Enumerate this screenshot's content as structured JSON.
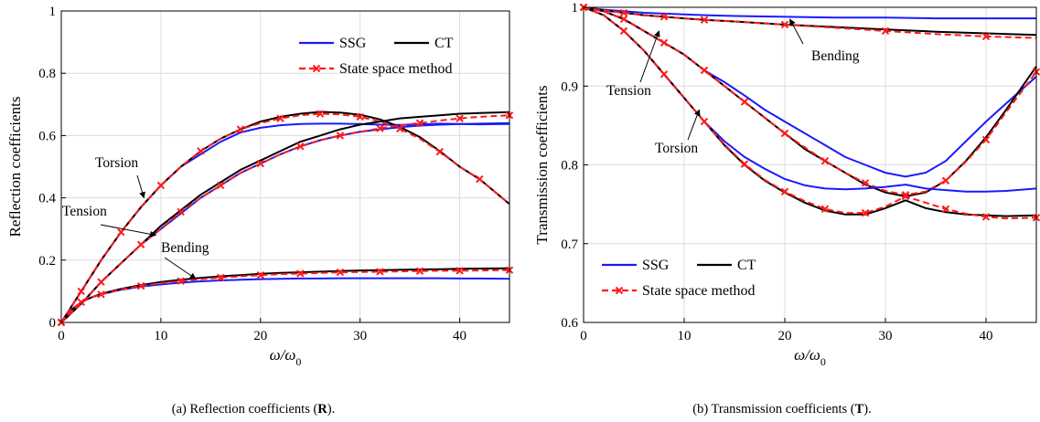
{
  "chart_data": [
    {
      "type": "line",
      "xlabel": "ω/ω",
      "xlabel_sub": "0",
      "ylabel": "Reflection coefficients",
      "xlim": [
        0,
        45
      ],
      "ylim": [
        0,
        1
      ],
      "xticks": [
        0,
        10,
        20,
        30,
        40
      ],
      "yticks": [
        0,
        0.2,
        0.4,
        0.6,
        0.8,
        1
      ],
      "ytick_labels": [
        "0",
        "0.2",
        "0.4",
        "0.6",
        "0.8",
        "1"
      ],
      "grid": true,
      "legend": {
        "placement": "top-right",
        "entries": [
          {
            "label": "SSG",
            "color": "#1a1aff",
            "style": "solid"
          },
          {
            "label": "CT",
            "color": "#000000",
            "style": "solid"
          },
          {
            "label": "State space method",
            "color": "#ff1a1a",
            "style": "dashed-x"
          }
        ]
      },
      "annotations": [
        {
          "text": "Torsion",
          "target_x": 8.3,
          "target_y": 0.4
        },
        {
          "text": "Tension",
          "target_x": 9.5,
          "target_y": 0.28
        },
        {
          "text": "Bending",
          "target_x": 13.5,
          "target_y": 0.14
        }
      ],
      "series": [
        {
          "name": "SSG",
          "group": "Torsion",
          "x": [
            0,
            1,
            2,
            4,
            6,
            8,
            10,
            12,
            14,
            16,
            18,
            20,
            22,
            24,
            26,
            28,
            30,
            32,
            34,
            36,
            38,
            40,
            42,
            45
          ],
          "y": [
            0,
            0.05,
            0.1,
            0.2,
            0.29,
            0.37,
            0.44,
            0.5,
            0.54,
            0.58,
            0.61,
            0.625,
            0.633,
            0.637,
            0.638,
            0.638,
            0.637,
            0.635,
            0.634,
            0.636,
            0.638,
            0.637,
            0.636,
            0.637
          ]
        },
        {
          "name": "CT",
          "group": "Torsion",
          "x": [
            0,
            1,
            2,
            4,
            6,
            8,
            10,
            12,
            14,
            16,
            18,
            20,
            22,
            24,
            26,
            28,
            30,
            32,
            34,
            36,
            38,
            40,
            42,
            45
          ],
          "y": [
            0,
            0.05,
            0.1,
            0.2,
            0.29,
            0.37,
            0.44,
            0.5,
            0.55,
            0.59,
            0.62,
            0.645,
            0.66,
            0.67,
            0.676,
            0.674,
            0.667,
            0.652,
            0.628,
            0.595,
            0.55,
            0.5,
            0.46,
            0.38
          ]
        },
        {
          "name": "State space method",
          "group": "Torsion",
          "x": [
            0,
            1,
            2,
            4,
            6,
            8,
            10,
            12,
            14,
            16,
            18,
            20,
            22,
            24,
            26,
            28,
            30,
            32,
            34,
            36,
            38,
            40,
            42,
            45
          ],
          "y": [
            0,
            0.05,
            0.1,
            0.2,
            0.29,
            0.37,
            0.44,
            0.5,
            0.55,
            0.59,
            0.62,
            0.64,
            0.655,
            0.665,
            0.67,
            0.668,
            0.66,
            0.645,
            0.622,
            0.59,
            0.548,
            0.5,
            0.46,
            0.38
          ]
        },
        {
          "name": "SSG",
          "group": "Tension",
          "x": [
            0,
            2,
            4,
            6,
            8,
            10,
            12,
            14,
            16,
            18,
            20,
            22,
            24,
            26,
            28,
            30,
            32,
            34,
            36,
            38,
            40,
            42,
            45
          ],
          "y": [
            0,
            0.06,
            0.13,
            0.19,
            0.25,
            0.3,
            0.35,
            0.4,
            0.44,
            0.48,
            0.51,
            0.54,
            0.565,
            0.585,
            0.6,
            0.612,
            0.62,
            0.627,
            0.632,
            0.635,
            0.637,
            0.638,
            0.64
          ]
        },
        {
          "name": "CT",
          "group": "Tension",
          "x": [
            0,
            2,
            4,
            6,
            8,
            10,
            12,
            14,
            16,
            18,
            20,
            22,
            24,
            26,
            28,
            30,
            32,
            34,
            36,
            38,
            40,
            42,
            45
          ],
          "y": [
            0,
            0.06,
            0.13,
            0.19,
            0.25,
            0.31,
            0.36,
            0.41,
            0.45,
            0.49,
            0.52,
            0.55,
            0.58,
            0.6,
            0.62,
            0.635,
            0.645,
            0.655,
            0.66,
            0.665,
            0.67,
            0.672,
            0.675
          ]
        },
        {
          "name": "State space method",
          "group": "Tension",
          "x": [
            0,
            2,
            4,
            6,
            8,
            10,
            12,
            14,
            16,
            18,
            20,
            22,
            24,
            26,
            28,
            30,
            32,
            34,
            36,
            38,
            40,
            42,
            45
          ],
          "y": [
            0,
            0.06,
            0.13,
            0.19,
            0.25,
            0.3,
            0.355,
            0.4,
            0.44,
            0.48,
            0.51,
            0.54,
            0.565,
            0.585,
            0.6,
            0.612,
            0.623,
            0.633,
            0.64,
            0.648,
            0.655,
            0.66,
            0.665
          ]
        },
        {
          "name": "SSG",
          "group": "Bending",
          "x": [
            0,
            1,
            2,
            3,
            4,
            6,
            8,
            10,
            12,
            14,
            16,
            18,
            20,
            22,
            24,
            26,
            28,
            30,
            32,
            34,
            36,
            38,
            40,
            42,
            45
          ],
          "y": [
            0,
            0.04,
            0.065,
            0.08,
            0.09,
            0.105,
            0.115,
            0.122,
            0.128,
            0.132,
            0.135,
            0.137,
            0.139,
            0.14,
            0.141,
            0.141,
            0.142,
            0.142,
            0.142,
            0.142,
            0.142,
            0.142,
            0.141,
            0.141,
            0.14
          ]
        },
        {
          "name": "CT",
          "group": "Bending",
          "x": [
            0,
            1,
            2,
            3,
            4,
            6,
            8,
            10,
            12,
            14,
            16,
            18,
            20,
            22,
            24,
            26,
            28,
            30,
            32,
            34,
            36,
            38,
            40,
            42,
            45
          ],
          "y": [
            0,
            0.04,
            0.065,
            0.08,
            0.092,
            0.108,
            0.12,
            0.13,
            0.137,
            0.143,
            0.148,
            0.152,
            0.156,
            0.159,
            0.161,
            0.163,
            0.165,
            0.167,
            0.168,
            0.169,
            0.17,
            0.171,
            0.172,
            0.173,
            0.174
          ]
        },
        {
          "name": "State space method",
          "group": "Bending",
          "x": [
            0,
            1,
            2,
            3,
            4,
            6,
            8,
            10,
            12,
            14,
            16,
            18,
            20,
            22,
            24,
            26,
            28,
            30,
            32,
            34,
            36,
            38,
            40,
            42,
            45
          ],
          "y": [
            0,
            0.04,
            0.065,
            0.08,
            0.09,
            0.106,
            0.117,
            0.126,
            0.133,
            0.139,
            0.144,
            0.148,
            0.152,
            0.155,
            0.157,
            0.159,
            0.161,
            0.162,
            0.163,
            0.164,
            0.165,
            0.166,
            0.166,
            0.167,
            0.168
          ]
        }
      ]
    },
    {
      "type": "line",
      "xlabel": "ω/ω",
      "xlabel_sub": "0",
      "ylabel": "Transmission coefficients",
      "xlim": [
        0,
        45
      ],
      "ylim": [
        0.6,
        1
      ],
      "xticks": [
        0,
        10,
        20,
        30,
        40
      ],
      "yticks": [
        0.6,
        0.7,
        0.8,
        0.9,
        1
      ],
      "ytick_labels": [
        "0.6",
        "0.7",
        "0.8",
        "0.9",
        "1"
      ],
      "grid": true,
      "legend": {
        "placement": "bottom-left",
        "entries": [
          {
            "label": "SSG",
            "color": "#1a1aff",
            "style": "solid"
          },
          {
            "label": "CT",
            "color": "#000000",
            "style": "solid"
          },
          {
            "label": "State space method",
            "color": "#ff1a1a",
            "style": "dashed-x"
          }
        ]
      },
      "annotations": [
        {
          "text": "Bending",
          "target_x": 20.5,
          "target_y": 0.985
        },
        {
          "text": "Tension",
          "target_x": 7.5,
          "target_y": 0.97
        },
        {
          "text": "Torsion",
          "target_x": 11.5,
          "target_y": 0.87
        }
      ],
      "series": [
        {
          "name": "SSG",
          "group": "Bending",
          "x": [
            0,
            2,
            4,
            6,
            8,
            10,
            12,
            15,
            20,
            25,
            30,
            35,
            40,
            45
          ],
          "y": [
            1,
            0.997,
            0.995,
            0.993,
            0.992,
            0.991,
            0.99,
            0.989,
            0.988,
            0.987,
            0.987,
            0.986,
            0.986,
            0.986
          ]
        },
        {
          "name": "CT",
          "group": "Bending",
          "x": [
            0,
            2,
            4,
            6,
            8,
            10,
            12,
            15,
            20,
            25,
            30,
            35,
            40,
            45
          ],
          "y": [
            1,
            0.996,
            0.993,
            0.99,
            0.988,
            0.986,
            0.984,
            0.982,
            0.978,
            0.975,
            0.972,
            0.969,
            0.967,
            0.965
          ]
        },
        {
          "name": "State space method",
          "group": "Bending",
          "x": [
            0,
            2,
            4,
            6,
            8,
            10,
            12,
            15,
            20,
            25,
            30,
            35,
            40,
            45
          ],
          "y": [
            1,
            0.996,
            0.993,
            0.99,
            0.988,
            0.986,
            0.984,
            0.982,
            0.978,
            0.974,
            0.97,
            0.966,
            0.963,
            0.961
          ]
        },
        {
          "name": "SSG",
          "group": "Tension",
          "x": [
            0,
            2,
            4,
            6,
            8,
            10,
            12,
            14,
            16,
            18,
            20,
            22,
            24,
            26,
            28,
            30,
            32,
            34,
            36,
            38,
            40,
            42,
            45
          ],
          "y": [
            1,
            0.995,
            0.985,
            0.97,
            0.955,
            0.94,
            0.92,
            0.905,
            0.888,
            0.87,
            0.855,
            0.84,
            0.825,
            0.81,
            0.8,
            0.79,
            0.785,
            0.79,
            0.805,
            0.83,
            0.855,
            0.878,
            0.912
          ]
        },
        {
          "name": "CT",
          "group": "Tension",
          "x": [
            0,
            2,
            4,
            6,
            8,
            10,
            12,
            14,
            16,
            18,
            20,
            22,
            24,
            26,
            28,
            30,
            32,
            34,
            36,
            38,
            40,
            42,
            45
          ],
          "y": [
            1,
            0.995,
            0.985,
            0.97,
            0.955,
            0.94,
            0.92,
            0.9,
            0.88,
            0.86,
            0.84,
            0.82,
            0.805,
            0.79,
            0.775,
            0.765,
            0.76,
            0.765,
            0.78,
            0.805,
            0.835,
            0.87,
            0.925
          ]
        },
        {
          "name": "State space method",
          "group": "Tension",
          "x": [
            0,
            2,
            4,
            6,
            8,
            10,
            12,
            14,
            16,
            18,
            20,
            22,
            24,
            26,
            28,
            30,
            32,
            34,
            36,
            38,
            40,
            42,
            45
          ],
          "y": [
            1,
            0.995,
            0.985,
            0.97,
            0.955,
            0.94,
            0.92,
            0.9,
            0.88,
            0.86,
            0.84,
            0.822,
            0.805,
            0.79,
            0.777,
            0.767,
            0.762,
            0.766,
            0.78,
            0.804,
            0.832,
            0.867,
            0.918
          ]
        },
        {
          "name": "SSG",
          "group": "Torsion",
          "x": [
            0,
            2,
            4,
            6,
            8,
            10,
            12,
            14,
            16,
            18,
            20,
            22,
            24,
            26,
            28,
            30,
            32,
            34,
            36,
            38,
            40,
            42,
            45
          ],
          "y": [
            1,
            0.99,
            0.97,
            0.945,
            0.915,
            0.885,
            0.855,
            0.83,
            0.81,
            0.795,
            0.782,
            0.774,
            0.77,
            0.769,
            0.77,
            0.772,
            0.775,
            0.77,
            0.768,
            0.766,
            0.766,
            0.767,
            0.77
          ]
        },
        {
          "name": "CT",
          "group": "Torsion",
          "x": [
            0,
            2,
            4,
            6,
            8,
            10,
            12,
            14,
            16,
            18,
            20,
            22,
            24,
            26,
            28,
            30,
            32,
            34,
            36,
            38,
            40,
            42,
            45
          ],
          "y": [
            1,
            0.99,
            0.97,
            0.945,
            0.915,
            0.885,
            0.855,
            0.825,
            0.8,
            0.78,
            0.765,
            0.752,
            0.742,
            0.737,
            0.737,
            0.745,
            0.755,
            0.745,
            0.74,
            0.737,
            0.736,
            0.735,
            0.736
          ]
        },
        {
          "name": "State space method",
          "group": "Torsion",
          "x": [
            0,
            2,
            4,
            6,
            8,
            10,
            12,
            14,
            16,
            18,
            20,
            22,
            24,
            26,
            28,
            30,
            32,
            34,
            36,
            38,
            40,
            42,
            45
          ],
          "y": [
            1,
            0.99,
            0.97,
            0.945,
            0.915,
            0.885,
            0.855,
            0.826,
            0.801,
            0.781,
            0.766,
            0.754,
            0.744,
            0.739,
            0.739,
            0.747,
            0.76,
            0.752,
            0.744,
            0.738,
            0.734,
            0.732,
            0.733
          ]
        }
      ]
    }
  ],
  "captions": {
    "left": {
      "prefix": "(a)  Reflection coefficients (",
      "bold": "R",
      "suffix": ")."
    },
    "right": {
      "prefix": "(b)  Transmission coefficients (",
      "bold": "T",
      "suffix": ")."
    }
  }
}
